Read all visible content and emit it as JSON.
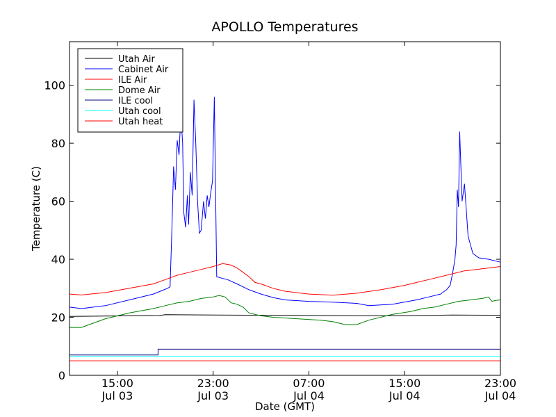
{
  "chart_data": {
    "type": "line",
    "title": "APOLLO Temperatures",
    "xlabel": "Date (GMT)",
    "ylabel": "Temperature (C)",
    "xlim": [
      11.0,
      47.0
    ],
    "ylim": [
      0,
      115
    ],
    "grid": false,
    "legend_position": "top-left",
    "yticks": [
      {
        "value": 0,
        "label": "0"
      },
      {
        "value": 20,
        "label": "20"
      },
      {
        "value": 40,
        "label": "40"
      },
      {
        "value": 60,
        "label": "60"
      },
      {
        "value": 80,
        "label": "80"
      },
      {
        "value": 100,
        "label": "100"
      }
    ],
    "xticks": [
      {
        "value": 15,
        "time": "15:00",
        "date": "Jul 03"
      },
      {
        "value": 23,
        "time": "23:00",
        "date": "Jul 03"
      },
      {
        "value": 31,
        "time": "07:00",
        "date": "Jul 04"
      },
      {
        "value": 39,
        "time": "15:00",
        "date": "Jul 04"
      },
      {
        "value": 47,
        "time": "23:00",
        "date": "Jul 04"
      }
    ],
    "series": [
      {
        "name": "Utah Air",
        "color": "#000000",
        "x": [
          11,
          18.5,
          19,
          23,
          27,
          31,
          35,
          39,
          43,
          47
        ],
        "y": [
          20.3,
          20.6,
          20.9,
          20.8,
          20.7,
          20.6,
          20.5,
          20.5,
          20.8,
          20.7
        ]
      },
      {
        "name": "Cabinet Air",
        "color": "#0000ff",
        "x": [
          11,
          12,
          14,
          16,
          18,
          18.9,
          19.2,
          19.4,
          19.55,
          19.7,
          19.85,
          20,
          20.15,
          20.3,
          20.45,
          20.55,
          20.7,
          20.85,
          20.95,
          21.1,
          21.25,
          21.4,
          21.55,
          21.7,
          21.85,
          22,
          22.2,
          22.35,
          22.5,
          22.65,
          22.8,
          22.95,
          23.1,
          23.3,
          23.7,
          24.2,
          25,
          26,
          27,
          28,
          29,
          31,
          33,
          35,
          36,
          38,
          40,
          41,
          42,
          42.5,
          42.8,
          43,
          43.2,
          43.3,
          43.4,
          43.5,
          43.6,
          43.8,
          44,
          44.3,
          44.7,
          45.2,
          46,
          47
        ],
        "y": [
          23.5,
          23,
          24,
          26,
          28,
          29.5,
          30,
          30.5,
          50,
          72,
          64,
          81,
          76,
          90,
          80,
          56,
          51,
          62,
          52,
          70,
          62,
          95,
          80,
          60,
          49,
          50,
          60,
          54,
          62,
          58,
          63,
          67,
          96,
          34,
          33.5,
          33,
          31.5,
          29.5,
          28,
          26.8,
          26,
          25.5,
          25.2,
          24.8,
          24,
          24.5,
          26,
          27,
          28,
          29.5,
          31,
          35,
          40,
          45,
          64,
          58,
          84,
          60,
          66,
          48,
          42,
          40.5,
          40,
          39
        ]
      },
      {
        "name": "ILE Air",
        "color": "#ff0000",
        "x": [
          11,
          12,
          14,
          16,
          18,
          19,
          20,
          21,
          22,
          23,
          23.8,
          24.5,
          25,
          25.5,
          26,
          26.5,
          27,
          28,
          29,
          31,
          33,
          35,
          37,
          39,
          40,
          41,
          42,
          43,
          44,
          45,
          46,
          47
        ],
        "y": [
          28,
          27.7,
          28.5,
          30,
          31.5,
          33,
          34.5,
          35.5,
          36.5,
          37.5,
          38.5,
          38,
          37,
          35.5,
          34,
          32,
          31.5,
          30,
          29,
          28,
          27.6,
          28.3,
          29.5,
          31,
          32,
          33,
          34,
          35,
          36,
          36.5,
          37,
          37.5
        ]
      },
      {
        "name": "Dome Air",
        "color": "#008000",
        "x": [
          11,
          12,
          13,
          14,
          16,
          18,
          19,
          20,
          21,
          22,
          23,
          23.5,
          24,
          24.5,
          25,
          25.5,
          26,
          27,
          28,
          30,
          32,
          33,
          33.5,
          34,
          35,
          36,
          38,
          39.5,
          40.5,
          41.5,
          42.5,
          43.5,
          44.5,
          45.5,
          46,
          46.3,
          46.6,
          47
        ],
        "y": [
          16.5,
          16.5,
          18,
          19.5,
          21.5,
          23,
          24,
          25,
          25.5,
          26.5,
          27,
          27.5,
          27,
          25,
          24.5,
          23.5,
          21.5,
          20.5,
          20,
          19.5,
          19,
          18.5,
          18,
          17.5,
          17.5,
          19,
          21,
          22,
          23,
          23.5,
          24.5,
          25.5,
          26,
          26.5,
          27,
          25.5,
          25.8,
          26
        ]
      },
      {
        "name": "ILE cool",
        "color": "#000080",
        "x": [
          11,
          18.4,
          18.4,
          47
        ],
        "y": [
          7,
          7,
          9,
          9
        ]
      },
      {
        "name": "Utah cool",
        "color": "#00ffff",
        "x": [
          11,
          47
        ],
        "y": [
          6.5,
          6.5
        ]
      },
      {
        "name": "Utah heat",
        "color": "#ff0000",
        "x": [
          11,
          47
        ],
        "y": [
          5,
          5
        ]
      }
    ]
  }
}
